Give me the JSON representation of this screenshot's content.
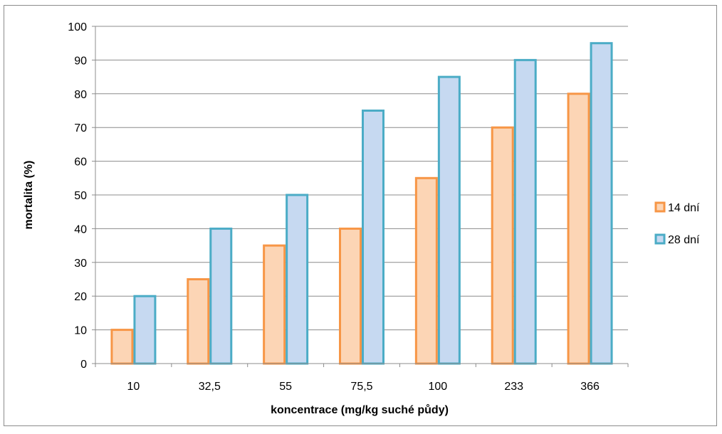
{
  "chart_data": {
    "type": "bar",
    "title": "",
    "xlabel": "koncentrace (mg/kg suché půdy)",
    "ylabel": "mortalita (%)",
    "categories": [
      "10",
      "32,5",
      "55",
      "75,5",
      "100",
      "233",
      "366"
    ],
    "series": [
      {
        "name": "14 dní",
        "values": [
          10,
          25,
          35,
          40,
          55,
          70,
          80
        ],
        "fill": "#fcd5b5",
        "stroke": "#f79646"
      },
      {
        "name": "28 dní",
        "values": [
          20,
          40,
          50,
          75,
          85,
          90,
          95
        ],
        "fill": "#c6d9f1",
        "stroke": "#4bacc6"
      }
    ],
    "ylim": [
      0,
      100
    ],
    "yticks": [
      0,
      10,
      20,
      30,
      40,
      50,
      60,
      70,
      80,
      90,
      100
    ],
    "grid": true,
    "legend_position": "right"
  }
}
